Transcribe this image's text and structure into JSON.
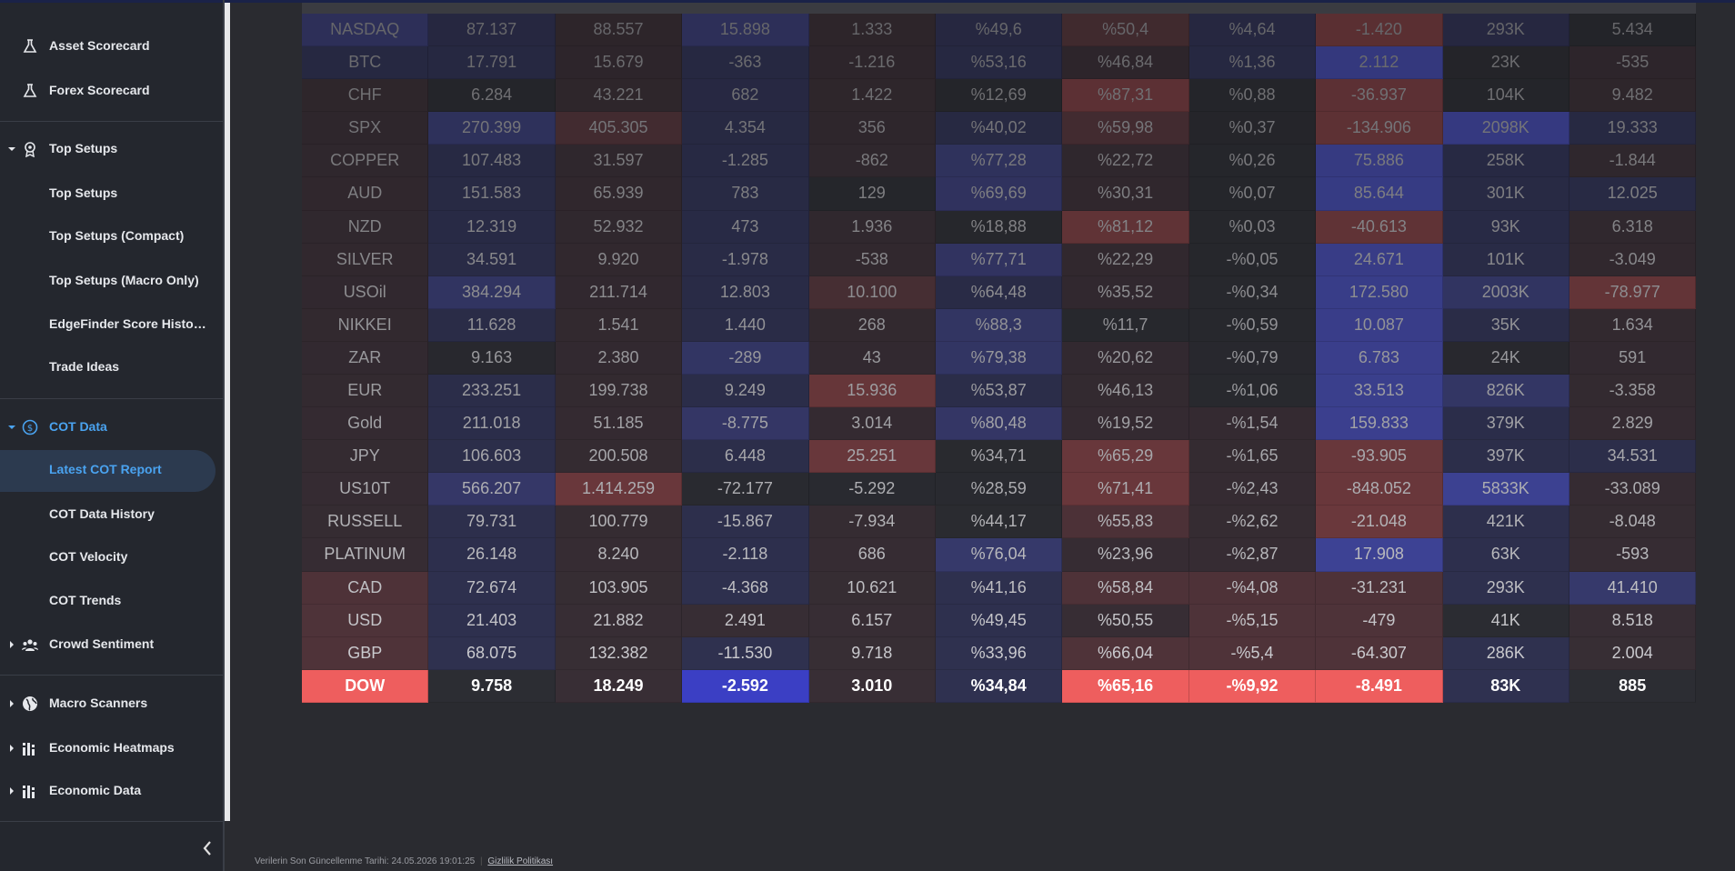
{
  "sidebar": {
    "items": [
      {
        "label": "Asset Scorecard"
      },
      {
        "label": "Forex Scorecard"
      },
      {
        "label": "Top Setups"
      },
      {
        "label": "Top Setups"
      },
      {
        "label": "Top Setups (Compact)"
      },
      {
        "label": "Top Setups (Macro Only)"
      },
      {
        "label": "EdgeFinder Score Histo…"
      },
      {
        "label": "Trade Ideas"
      },
      {
        "label": "COT Data"
      },
      {
        "label": "Latest COT Report"
      },
      {
        "label": "COT Data History"
      },
      {
        "label": "COT Velocity"
      },
      {
        "label": "COT Trends"
      },
      {
        "label": "Crowd Sentiment"
      },
      {
        "label": "Macro Scanners"
      },
      {
        "label": "Economic Heatmaps"
      },
      {
        "label": "Economic Data"
      }
    ]
  },
  "table": {
    "rows": [
      [
        "NASDAQ",
        "87.137",
        "88.557",
        "15.898",
        "1.333",
        "%49,6",
        "%50,4",
        "%4,64",
        "-1.420",
        "293K",
        "5.434"
      ],
      [
        "BTC",
        "17.791",
        "15.679",
        "-363",
        "-1.216",
        "%53,16",
        "%46,84",
        "%1,36",
        "2.112",
        "23K",
        "-535"
      ],
      [
        "CHF",
        "6.284",
        "43.221",
        "682",
        "1.422",
        "%12,69",
        "%87,31",
        "%0,88",
        "-36.937",
        "104K",
        "9.482"
      ],
      [
        "SPX",
        "270.399",
        "405.305",
        "4.354",
        "356",
        "%40,02",
        "%59,98",
        "%0,37",
        "-134.906",
        "2098K",
        "19.333"
      ],
      [
        "COPPER",
        "107.483",
        "31.597",
        "-1.285",
        "-862",
        "%77,28",
        "%22,72",
        "%0,26",
        "75.886",
        "258K",
        "-1.844"
      ],
      [
        "AUD",
        "151.583",
        "65.939",
        "783",
        "129",
        "%69,69",
        "%30,31",
        "%0,07",
        "85.644",
        "301K",
        "12.025"
      ],
      [
        "NZD",
        "12.319",
        "52.932",
        "473",
        "1.936",
        "%18,88",
        "%81,12",
        "%0,03",
        "-40.613",
        "93K",
        "6.318"
      ],
      [
        "SILVER",
        "34.591",
        "9.920",
        "-1.978",
        "-538",
        "%77,71",
        "%22,29",
        "-%0,05",
        "24.671",
        "101K",
        "-3.049"
      ],
      [
        "USOil",
        "384.294",
        "211.714",
        "12.803",
        "10.100",
        "%64,48",
        "%35,52",
        "-%0,34",
        "172.580",
        "2003K",
        "-78.977"
      ],
      [
        "NIKKEI",
        "11.628",
        "1.541",
        "1.440",
        "268",
        "%88,3",
        "%11,7",
        "-%0,59",
        "10.087",
        "35K",
        "1.634"
      ],
      [
        "ZAR",
        "9.163",
        "2.380",
        "-289",
        "43",
        "%79,38",
        "%20,62",
        "-%0,79",
        "6.783",
        "24K",
        "591"
      ],
      [
        "EUR",
        "233.251",
        "199.738",
        "9.249",
        "15.936",
        "%53,87",
        "%46,13",
        "-%1,06",
        "33.513",
        "826K",
        "-3.358"
      ],
      [
        "Gold",
        "211.018",
        "51.185",
        "-8.775",
        "3.014",
        "%80,48",
        "%19,52",
        "-%1,54",
        "159.833",
        "379K",
        "2.829"
      ],
      [
        "JPY",
        "106.603",
        "200.508",
        "6.448",
        "25.251",
        "%34,71",
        "%65,29",
        "-%1,65",
        "-93.905",
        "397K",
        "34.531"
      ],
      [
        "US10T",
        "566.207",
        "1.414.259",
        "-72.177",
        "-5.292",
        "%28,59",
        "%71,41",
        "-%2,43",
        "-848.052",
        "5833K",
        "-33.089"
      ],
      [
        "RUSSELL",
        "79.731",
        "100.779",
        "-15.867",
        "-7.934",
        "%44,17",
        "%55,83",
        "-%2,62",
        "-21.048",
        "421K",
        "-8.048"
      ],
      [
        "PLATINUM",
        "26.148",
        "8.240",
        "-2.118",
        "686",
        "%76,04",
        "%23,96",
        "-%2,87",
        "17.908",
        "63K",
        "-593"
      ],
      [
        "CAD",
        "72.674",
        "103.905",
        "-4.368",
        "10.621",
        "%41,16",
        "%58,84",
        "-%4,08",
        "-31.231",
        "293K",
        "41.410"
      ],
      [
        "USD",
        "21.403",
        "21.882",
        "2.491",
        "6.157",
        "%49,45",
        "%50,55",
        "-%5,15",
        "-479",
        "41K",
        "8.518"
      ],
      [
        "GBP",
        "68.075",
        "132.382",
        "-11.530",
        "9.718",
        "%33,96",
        "%66,04",
        "-%5,4",
        "-64.307",
        "286K",
        "2.004"
      ],
      [
        "DOW",
        "9.758",
        "18.249",
        "-2.592",
        "3.010",
        "%34,84",
        "%65,16",
        "-%9,92",
        "-8.491",
        "83K",
        "885"
      ]
    ]
  },
  "footer": {
    "updated": "Verilerin Son Güncellenme Tarihi: 24.05.2026 19:01:25",
    "privacy": "Gizlilik Politikası"
  }
}
